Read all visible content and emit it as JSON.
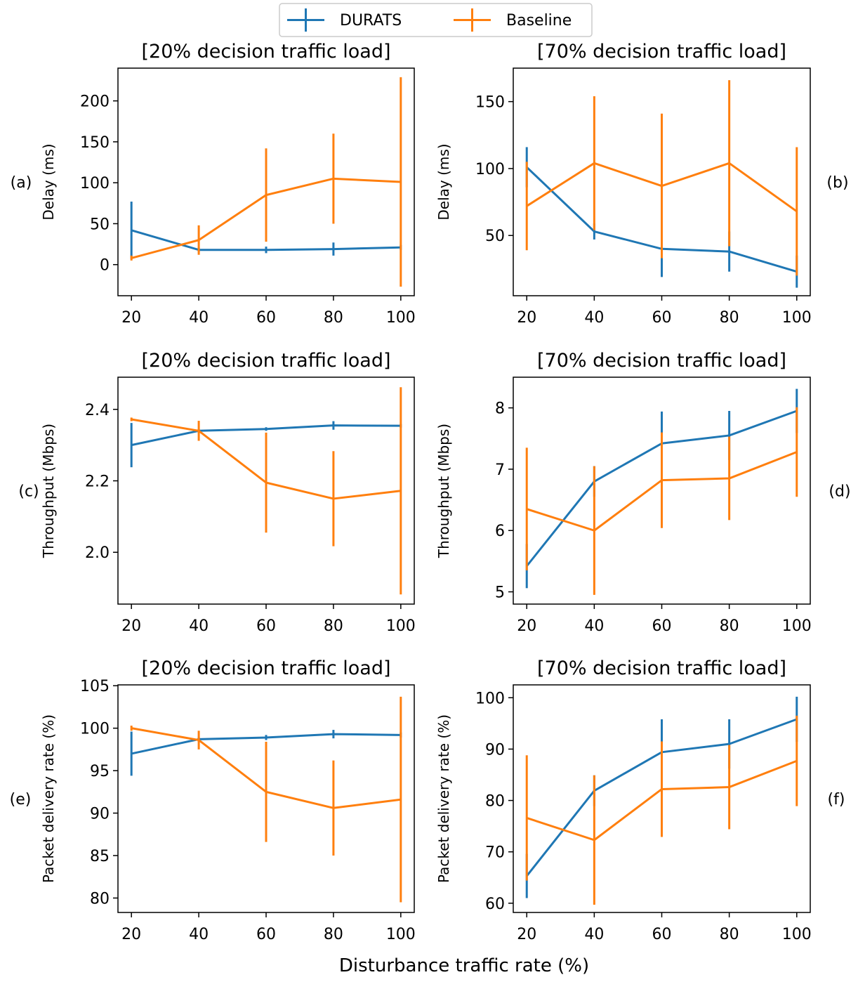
{
  "legend": [
    {
      "label": "DURATS",
      "color": "#1f77b4"
    },
    {
      "label": "Baseline",
      "color": "#ff7f0e"
    }
  ],
  "xlabel": "Disturbance traffic rate (%)",
  "chart_data": [
    {
      "type": "line",
      "panel": "(a)",
      "title": "[20% decision traffic load]",
      "ylabel": "Delay (ms)",
      "x": [
        20,
        40,
        60,
        80,
        100
      ],
      "xlim": [
        16,
        104
      ],
      "ylim": [
        -38,
        240
      ],
      "yticks": [
        0,
        50,
        100,
        150,
        200
      ],
      "series": [
        {
          "name": "DURATS",
          "color": "#1f77b4",
          "values": [
            42,
            18,
            18,
            19,
            21
          ],
          "err": [
            35,
            3,
            4,
            8,
            3
          ]
        },
        {
          "name": "Baseline",
          "color": "#ff7f0e",
          "values": [
            8,
            30,
            85,
            105,
            101
          ],
          "err": [
            3,
            18,
            57,
            55,
            128
          ]
        }
      ]
    },
    {
      "type": "line",
      "panel": "(b)",
      "title": "[70% decision traffic load]",
      "ylabel": "Delay (ms)",
      "x": [
        20,
        40,
        60,
        80,
        100
      ],
      "xlim": [
        16,
        104
      ],
      "ylim": [
        5,
        175
      ],
      "yticks": [
        50,
        100,
        150
      ],
      "series": [
        {
          "name": "DURATS",
          "color": "#1f77b4",
          "values": [
            101,
            53,
            40,
            38,
            23
          ],
          "err": [
            15,
            6,
            21,
            15,
            12
          ]
        },
        {
          "name": "Baseline",
          "color": "#ff7f0e",
          "values": [
            72,
            104,
            87,
            104,
            68
          ],
          "err": [
            33,
            50,
            54,
            62,
            48
          ]
        }
      ]
    },
    {
      "type": "line",
      "panel": "(c)",
      "title": "[20% decision traffic load]",
      "ylabel": "Throughput (Mbps)",
      "x": [
        20,
        40,
        60,
        80,
        100
      ],
      "xlim": [
        16,
        104
      ],
      "ylim": [
        1.855,
        2.49
      ],
      "yticks": [
        2.0,
        2.2,
        2.4
      ],
      "ytick_labels": [
        "2.0",
        "2.2",
        "2.4"
      ],
      "series": [
        {
          "name": "DURATS",
          "color": "#1f77b4",
          "values": [
            2.3,
            2.34,
            2.345,
            2.355,
            2.354
          ],
          "err": [
            0.062,
            0.005,
            0.005,
            0.012,
            0.005
          ]
        },
        {
          "name": "Baseline",
          "color": "#ff7f0e",
          "values": [
            2.372,
            2.34,
            2.195,
            2.15,
            2.172
          ],
          "err": [
            0.005,
            0.028,
            0.14,
            0.133,
            0.29
          ]
        }
      ]
    },
    {
      "type": "line",
      "panel": "(d)",
      "title": "[70% decision traffic load]",
      "ylabel": "Throughput (Mbps)",
      "x": [
        20,
        40,
        60,
        80,
        100
      ],
      "xlim": [
        16,
        104
      ],
      "ylim": [
        4.8,
        8.5
      ],
      "yticks": [
        5,
        6,
        7,
        8
      ],
      "series": [
        {
          "name": "DURATS",
          "color": "#1f77b4",
          "values": [
            5.42,
            6.8,
            7.42,
            7.55,
            7.95
          ],
          "err": [
            0.36,
            0.25,
            0.52,
            0.4,
            0.36
          ]
        },
        {
          "name": "Baseline",
          "color": "#ff7f0e",
          "values": [
            6.35,
            6.0,
            6.82,
            6.85,
            7.28
          ],
          "err": [
            1.0,
            1.05,
            0.78,
            0.68,
            0.73
          ]
        }
      ]
    },
    {
      "type": "line",
      "panel": "(e)",
      "title": "[20% decision traffic load]",
      "ylabel": "Packet delivery rate (%)",
      "x": [
        20,
        40,
        60,
        80,
        100
      ],
      "xlim": [
        16,
        104
      ],
      "ylim": [
        78.3,
        105.1
      ],
      "yticks": [
        80,
        85,
        90,
        95,
        100,
        105
      ],
      "series": [
        {
          "name": "DURATS",
          "color": "#1f77b4",
          "values": [
            97.0,
            98.7,
            98.9,
            99.3,
            99.2
          ],
          "err": [
            2.6,
            0.3,
            0.3,
            0.5,
            0.3
          ]
        },
        {
          "name": "Baseline",
          "color": "#ff7f0e",
          "values": [
            100.0,
            98.6,
            92.5,
            90.6,
            91.6
          ],
          "err": [
            0.3,
            1.1,
            5.9,
            5.6,
            12.1
          ]
        }
      ]
    },
    {
      "type": "line",
      "panel": "(f)",
      "title": "[70% decision traffic load]",
      "ylabel": "Packet delivery rate (%)",
      "x": [
        20,
        40,
        60,
        80,
        100
      ],
      "xlim": [
        16,
        104
      ],
      "ylim": [
        58.2,
        102.5
      ],
      "yticks": [
        60,
        70,
        80,
        90,
        100
      ],
      "series": [
        {
          "name": "DURATS",
          "color": "#1f77b4",
          "values": [
            65.3,
            81.9,
            89.4,
            91.0,
            95.8
          ],
          "err": [
            4.3,
            3.0,
            6.4,
            4.8,
            4.4
          ]
        },
        {
          "name": "Baseline",
          "color": "#ff7f0e",
          "values": [
            76.6,
            72.3,
            82.2,
            82.6,
            87.7
          ],
          "err": [
            12.2,
            12.6,
            9.3,
            8.2,
            8.8
          ]
        }
      ]
    }
  ]
}
